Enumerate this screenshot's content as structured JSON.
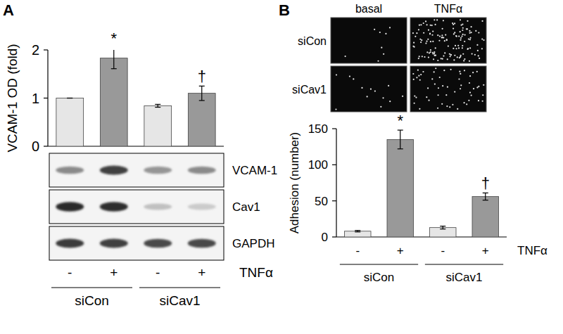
{
  "chart_data": [
    {
      "type": "bar",
      "ylabel": "VCAM-1 OD (fold)",
      "xlabel": "TNFα",
      "categories": [
        "-",
        "+",
        "-",
        "+"
      ],
      "groups": [
        "siCon",
        "siCav1"
      ],
      "values": [
        1,
        1.83,
        0.84,
        1.1
      ],
      "errors": [
        0,
        0.22,
        0.03,
        0.15
      ],
      "colors": [
        "#e6e6e6",
        "#999999",
        "#e6e6e6",
        "#999999"
      ],
      "ylim": [
        0,
        2
      ],
      "yticks": [
        0,
        1,
        2
      ],
      "grid": false,
      "annotations": [
        {
          "text": "*",
          "index": 1
        },
        {
          "text": "†",
          "index": 3
        }
      ]
    },
    {
      "type": "bar",
      "ylabel": "Adhesion (number)",
      "xlabel": "TNFα",
      "categories": [
        "-",
        "+",
        "-",
        "+"
      ],
      "groups": [
        "siCon",
        "siCav1"
      ],
      "values": [
        8,
        135,
        13,
        56
      ],
      "errors": [
        1,
        13,
        2,
        5
      ],
      "colors": [
        "#e6e6e6",
        "#999999",
        "#e6e6e6",
        "#999999"
      ],
      "ylim": [
        0,
        150
      ],
      "yticks": [
        0,
        50,
        100,
        150
      ],
      "grid": false,
      "annotations": [
        {
          "text": "*",
          "index": 1
        },
        {
          "text": "†",
          "index": 3
        }
      ]
    }
  ],
  "panel_labels": [
    "A",
    "B"
  ],
  "blot": {
    "rows": [
      {
        "label": "VCAM-1",
        "intensity": [
          0.45,
          0.8,
          0.4,
          0.45
        ]
      },
      {
        "label": "Cav1",
        "intensity": [
          0.9,
          0.88,
          0.2,
          0.15
        ]
      },
      {
        "label": "GAPDH",
        "intensity": [
          0.82,
          0.8,
          0.76,
          0.76
        ]
      }
    ]
  },
  "micrographs": {
    "columns": [
      "basal",
      "TNFα"
    ],
    "rows": [
      "siCon",
      "siCav1"
    ]
  }
}
